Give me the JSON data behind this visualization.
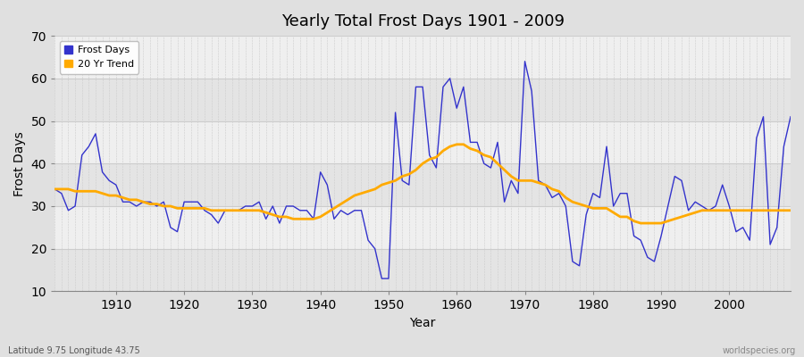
{
  "title": "Yearly Total Frost Days 1901 - 2009",
  "xlabel": "Year",
  "ylabel": "Frost Days",
  "footnote_left": "Latitude 9.75 Longitude 43.75",
  "footnote_right": "worldspecies.org",
  "ylim": [
    10,
    70
  ],
  "xlim": [
    1901,
    2009
  ],
  "yticks": [
    10,
    20,
    30,
    40,
    50,
    60,
    70
  ],
  "xticks": [
    1910,
    1920,
    1930,
    1940,
    1950,
    1960,
    1970,
    1980,
    1990,
    2000
  ],
  "bg_color": "#e0e0e0",
  "plot_bg_color_light": "#efefef",
  "plot_bg_color_dark": "#e4e4e4",
  "line_color": "#3333cc",
  "trend_color": "#ffaa00",
  "legend_labels": [
    "Frost Days",
    "20 Yr Trend"
  ],
  "frost_days": {
    "1901": 34,
    "1902": 33,
    "1903": 29,
    "1904": 30,
    "1905": 42,
    "1906": 44,
    "1907": 47,
    "1908": 38,
    "1909": 36,
    "1910": 35,
    "1911": 31,
    "1912": 31,
    "1913": 30,
    "1914": 31,
    "1915": 31,
    "1916": 30,
    "1917": 31,
    "1918": 25,
    "1919": 24,
    "1920": 31,
    "1921": 31,
    "1922": 31,
    "1923": 29,
    "1924": 28,
    "1925": 26,
    "1926": 29,
    "1927": 29,
    "1928": 29,
    "1929": 30,
    "1930": 30,
    "1931": 31,
    "1932": 27,
    "1933": 30,
    "1934": 26,
    "1935": 30,
    "1936": 30,
    "1937": 29,
    "1938": 29,
    "1939": 27,
    "1940": 38,
    "1941": 35,
    "1942": 27,
    "1943": 29,
    "1944": 28,
    "1945": 29,
    "1946": 29,
    "1947": 22,
    "1948": 20,
    "1949": 13,
    "1950": 13,
    "1951": 52,
    "1952": 36,
    "1953": 35,
    "1954": 58,
    "1955": 58,
    "1956": 42,
    "1957": 39,
    "1958": 58,
    "1959": 60,
    "1960": 53,
    "1961": 58,
    "1962": 45,
    "1963": 45,
    "1964": 40,
    "1965": 39,
    "1966": 45,
    "1967": 31,
    "1968": 36,
    "1969": 33,
    "1970": 64,
    "1971": 57,
    "1972": 36,
    "1973": 35,
    "1974": 32,
    "1975": 33,
    "1976": 30,
    "1977": 17,
    "1978": 16,
    "1979": 28,
    "1980": 33,
    "1981": 32,
    "1982": 44,
    "1983": 30,
    "1984": 33,
    "1985": 33,
    "1986": 23,
    "1987": 22,
    "1988": 18,
    "1989": 17,
    "1990": 23,
    "1991": 30,
    "1992": 37,
    "1993": 36,
    "1994": 29,
    "1995": 31,
    "1996": 30,
    "1997": 29,
    "1998": 30,
    "1999": 35,
    "2000": 30,
    "2001": 24,
    "2002": 25,
    "2003": 22,
    "2004": 46,
    "2005": 51,
    "2006": 21,
    "2007": 25,
    "2008": 44,
    "2009": 51
  },
  "trend_data": {
    "1901": 34.0,
    "1902": 34.0,
    "1903": 34.0,
    "1904": 33.5,
    "1905": 33.5,
    "1906": 33.5,
    "1907": 33.5,
    "1908": 33.0,
    "1909": 32.5,
    "1910": 32.5,
    "1911": 32.0,
    "1912": 31.5,
    "1913": 31.5,
    "1914": 31.0,
    "1915": 30.5,
    "1916": 30.5,
    "1917": 30.0,
    "1918": 30.0,
    "1919": 29.5,
    "1920": 29.5,
    "1921": 29.5,
    "1922": 29.5,
    "1923": 29.5,
    "1924": 29.0,
    "1925": 29.0,
    "1926": 29.0,
    "1927": 29.0,
    "1928": 29.0,
    "1929": 29.0,
    "1930": 29.0,
    "1931": 29.0,
    "1932": 28.5,
    "1933": 28.0,
    "1934": 27.5,
    "1935": 27.5,
    "1936": 27.0,
    "1937": 27.0,
    "1938": 27.0,
    "1939": 27.0,
    "1940": 27.5,
    "1941": 28.5,
    "1942": 29.5,
    "1943": 30.5,
    "1944": 31.5,
    "1945": 32.5,
    "1946": 33.0,
    "1947": 33.5,
    "1948": 34.0,
    "1949": 35.0,
    "1950": 35.5,
    "1951": 36.0,
    "1952": 37.0,
    "1953": 37.5,
    "1954": 38.5,
    "1955": 40.0,
    "1956": 41.0,
    "1957": 41.5,
    "1958": 43.0,
    "1959": 44.0,
    "1960": 44.5,
    "1961": 44.5,
    "1962": 43.5,
    "1963": 43.0,
    "1964": 42.0,
    "1965": 41.5,
    "1966": 40.0,
    "1967": 38.5,
    "1968": 37.0,
    "1969": 36.0,
    "1970": 36.0,
    "1971": 36.0,
    "1972": 35.5,
    "1973": 35.0,
    "1974": 34.0,
    "1975": 33.5,
    "1976": 32.0,
    "1977": 31.0,
    "1978": 30.5,
    "1979": 30.0,
    "1980": 29.5,
    "1981": 29.5,
    "1982": 29.5,
    "1983": 28.5,
    "1984": 27.5,
    "1985": 27.5,
    "1986": 26.5,
    "1987": 26.0,
    "1988": 26.0,
    "1989": 26.0,
    "1990": 26.0,
    "1991": 26.5,
    "1992": 27.0,
    "1993": 27.5,
    "1994": 28.0,
    "1995": 28.5,
    "1996": 29.0,
    "1997": 29.0,
    "1998": 29.0,
    "1999": 29.0,
    "2000": 29.0,
    "2001": 29.0,
    "2002": 29.0,
    "2003": 29.0,
    "2004": 29.0,
    "2005": 29.0,
    "2006": 29.0,
    "2007": 29.0,
    "2008": 29.0,
    "2009": 29.0
  }
}
